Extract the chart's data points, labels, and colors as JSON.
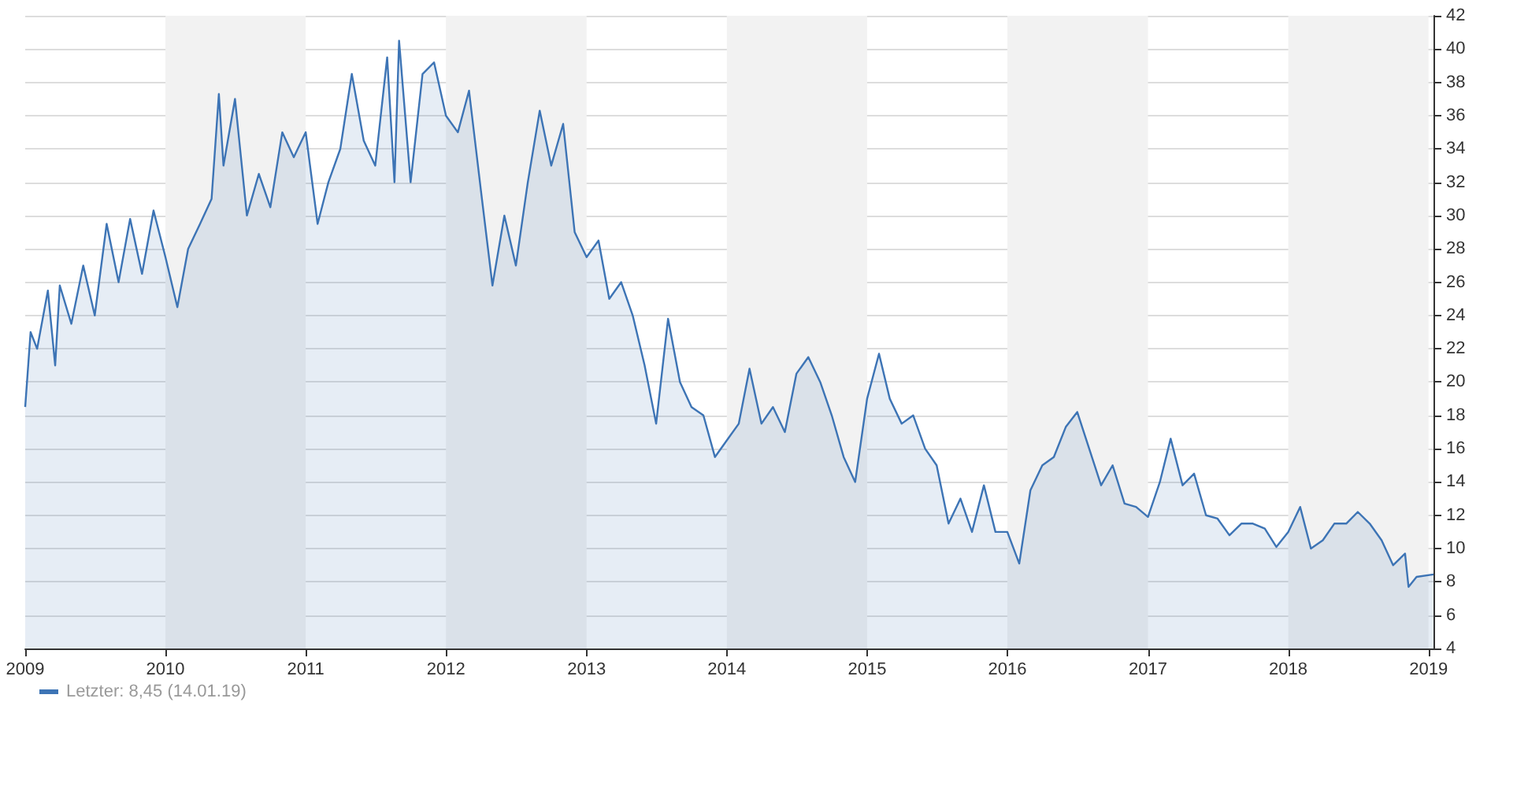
{
  "chart_data": {
    "type": "area",
    "x": [
      "2009-01-01",
      "2009-01-15",
      "2009-02",
      "2009-03",
      "2009-03-20",
      "2009-04",
      "2009-05",
      "2009-06",
      "2009-07",
      "2009-08",
      "2009-09",
      "2009-10",
      "2009-11",
      "2009-12",
      "2010-01",
      "2010-02",
      "2010-03",
      "2010-04",
      "2010-05",
      "2010-05-20",
      "2010-06",
      "2010-07",
      "2010-08",
      "2010-09",
      "2010-10",
      "2010-11",
      "2010-12",
      "2011-01",
      "2011-02",
      "2011-03",
      "2011-04",
      "2011-05",
      "2011-06",
      "2011-07",
      "2011-08",
      "2011-08-20",
      "2011-09",
      "2011-10",
      "2011-11",
      "2011-12",
      "2012-01",
      "2012-02",
      "2012-03",
      "2012-04",
      "2012-05",
      "2012-06",
      "2012-07",
      "2012-08",
      "2012-09",
      "2012-10",
      "2012-11",
      "2012-12",
      "2013-01",
      "2013-02",
      "2013-03",
      "2013-04",
      "2013-05",
      "2013-06",
      "2013-07",
      "2013-08",
      "2013-09",
      "2013-10",
      "2013-11",
      "2013-12",
      "2014-01",
      "2014-02",
      "2014-03",
      "2014-04",
      "2014-05",
      "2014-06",
      "2014-07",
      "2014-08",
      "2014-09",
      "2014-10",
      "2014-11",
      "2014-12",
      "2015-01",
      "2015-02",
      "2015-03",
      "2015-04",
      "2015-05",
      "2015-06",
      "2015-07",
      "2015-08",
      "2015-09",
      "2015-10",
      "2015-11",
      "2015-12",
      "2016-01",
      "2016-02",
      "2016-03",
      "2016-04",
      "2016-05",
      "2016-06",
      "2016-07",
      "2016-08",
      "2016-09",
      "2016-10",
      "2016-11",
      "2016-12",
      "2017-01",
      "2017-02",
      "2017-03",
      "2017-04",
      "2017-05",
      "2017-06",
      "2017-07",
      "2017-08",
      "2017-09",
      "2017-10",
      "2017-11",
      "2017-12",
      "2018-01",
      "2018-02",
      "2018-03",
      "2018-04",
      "2018-05",
      "2018-06",
      "2018-07",
      "2018-08",
      "2018-09",
      "2018-10",
      "2018-11",
      "2018-11-10",
      "2018-12",
      "2019-01-14"
    ],
    "series": [
      {
        "name": "Letzter: 8,45 (14.01.19)",
        "color": "#3d74b5",
        "values": [
          18.5,
          23,
          22,
          25.5,
          21,
          25.8,
          23.5,
          27,
          24,
          29.5,
          26,
          29.8,
          26.5,
          30.3,
          27.5,
          24.5,
          28,
          29.5,
          31,
          37.3,
          33,
          37,
          30,
          32.5,
          30.5,
          35,
          33.5,
          35,
          29.5,
          32,
          34,
          38.5,
          34.5,
          33,
          39.5,
          32,
          40.5,
          32,
          38.5,
          39.2,
          36,
          35,
          37.5,
          31.5,
          25.8,
          30,
          27,
          32,
          36.3,
          33,
          35.5,
          29,
          27.5,
          28.5,
          25,
          26,
          24,
          21,
          17.5,
          23.8,
          20,
          18.5,
          18,
          15.5,
          16.5,
          17.5,
          20.8,
          17.5,
          18.5,
          17,
          20.5,
          21.5,
          20,
          18,
          15.5,
          14,
          19,
          21.7,
          19,
          17.5,
          18,
          16,
          15,
          11.5,
          13,
          11,
          13.8,
          11,
          11,
          9.1,
          13.5,
          15,
          15.5,
          17.3,
          18.2,
          16,
          13.8,
          15,
          12.7,
          12.5,
          11.9,
          14,
          16.6,
          13.8,
          14.5,
          12,
          11.8,
          10.8,
          11.5,
          11.5,
          11.2,
          10.1,
          11,
          12.5,
          10,
          10.5,
          11.5,
          11.5,
          12.2,
          11.5,
          10.5,
          9,
          9.7,
          7.7,
          8.3,
          8.45
        ]
      }
    ],
    "xlim": [
      "2009-01-01",
      "2019-01-14"
    ],
    "xticks": [
      "2009",
      "2010",
      "2011",
      "2012",
      "2013",
      "2014",
      "2015",
      "2016",
      "2017",
      "2018",
      "2019"
    ],
    "ylim": [
      4,
      42
    ],
    "yticks": [
      4,
      6,
      8,
      10,
      12,
      14,
      16,
      18,
      20,
      22,
      24,
      26,
      28,
      30,
      32,
      34,
      36,
      38,
      40,
      42
    ],
    "bands": [
      {
        "axis": "x",
        "from": "2010-01-01",
        "to": "2011-01-01",
        "color": "#f2f2f2"
      },
      {
        "axis": "x",
        "from": "2012-01-01",
        "to": "2013-01-01",
        "color": "#f2f2f2"
      },
      {
        "axis": "x",
        "from": "2014-01-01",
        "to": "2015-01-01",
        "color": "#f2f2f2"
      },
      {
        "axis": "x",
        "from": "2016-01-01",
        "to": "2017-01-01",
        "color": "#f2f2f2"
      },
      {
        "axis": "x",
        "from": "2018-01-01",
        "to": "2019-01-01",
        "color": "#f2f2f2"
      }
    ],
    "grid": "y",
    "legend": "bottom left",
    "marker": "none",
    "line_style": "solid"
  }
}
